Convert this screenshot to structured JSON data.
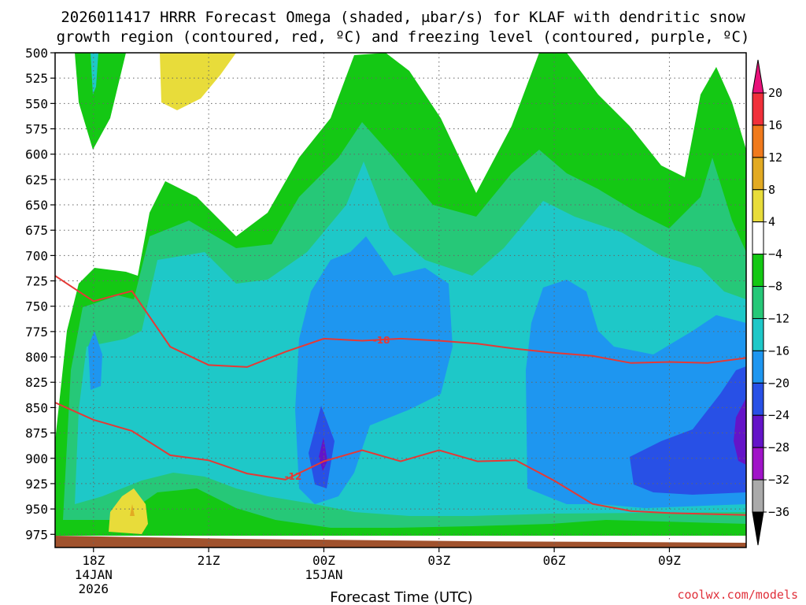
{
  "title": {
    "line1": "2026011417 HRRR Forecast Omega (shaded, μbar/s) for KLAF with dendritic snow",
    "line2": "growth region (contoured, red, ºC) and freezing level (contoured, purple, ºC)"
  },
  "xlabel": "Forecast Time (UTC)",
  "credit": "coolwx.com/models",
  "chart_data": {
    "type": "heatmap",
    "title": "2026011417 HRRR Forecast Omega (shaded, μbar/s) for KLAF with dendritic snow growth region (contoured, red, ºC) and freezing level (contoured, purple, ºC)",
    "xlabel": "Forecast Time (UTC)",
    "ylabel": "",
    "x_ticks": [
      {
        "label": "18Z",
        "sub1": "14JAN",
        "sub2": "2026",
        "hour": 18
      },
      {
        "label": "21Z",
        "sub1": "",
        "sub2": "",
        "hour": 21
      },
      {
        "label": "00Z",
        "sub1": "15JAN",
        "sub2": "",
        "hour": 24
      },
      {
        "label": "03Z",
        "sub1": "",
        "sub2": "",
        "hour": 27
      },
      {
        "label": "06Z",
        "sub1": "",
        "sub2": "",
        "hour": 30
      },
      {
        "label": "09Z",
        "sub1": "",
        "sub2": "",
        "hour": 33
      }
    ],
    "xlim": [
      17,
      35
    ],
    "y_ticks": [
      500,
      525,
      550,
      575,
      600,
      625,
      650,
      675,
      700,
      725,
      750,
      775,
      800,
      825,
      850,
      875,
      900,
      925,
      950,
      975
    ],
    "ylim": [
      500,
      988
    ],
    "y_inverted": true,
    "grid": true,
    "colorbar": {
      "levels": [
        20,
        16,
        12,
        8,
        4,
        -4,
        -8,
        -12,
        -16,
        -20,
        -24,
        -28,
        -32,
        -36
      ],
      "colors": [
        "#e8127a",
        "#f0303a",
        "#f07a1c",
        "#e2aa22",
        "#e8dc3a",
        "#ffffff",
        "#14c814",
        "#26c878",
        "#1ec8c8",
        "#1e96f0",
        "#2850e6",
        "#6414c8",
        "#a014c8",
        "#aaaaaa",
        "#000000"
      ]
    },
    "contours": [
      {
        "name": "-18",
        "color": "#e53935",
        "x": [
          17,
          18,
          19,
          20,
          21,
          22,
          23,
          24,
          25,
          26,
          27,
          28,
          29,
          30,
          31,
          32,
          33,
          34,
          35
        ],
        "y": [
          720,
          745,
          735,
          790,
          808,
          810,
          795,
          782,
          784,
          782,
          784,
          787,
          792,
          796,
          799,
          806,
          805,
          806,
          801
        ]
      },
      {
        "name": "-12",
        "color": "#e53935",
        "x": [
          17,
          18,
          19,
          20,
          21,
          22,
          23,
          24,
          25,
          26,
          27,
          28,
          29,
          30,
          31,
          32,
          33,
          34,
          35
        ],
        "y": [
          845,
          862,
          873,
          897,
          902,
          915,
          921,
          903,
          892,
          903,
          892,
          903,
          902,
          922,
          945,
          952,
          954,
          955,
          956
        ]
      }
    ]
  }
}
